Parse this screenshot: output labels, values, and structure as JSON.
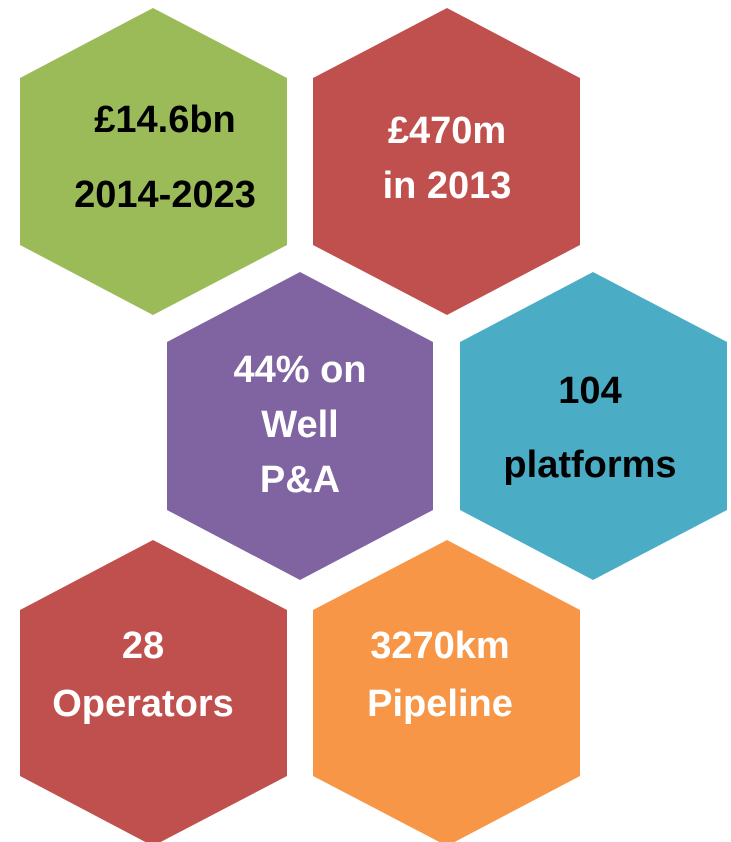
{
  "nodes": [
    {
      "lines": [
        "£14.6bn",
        "2014-2023"
      ]
    },
    {
      "lines": [
        "£470m",
        "in 2013"
      ]
    },
    {
      "lines": [
        "44% on",
        "Well",
        "P&A"
      ]
    },
    {
      "lines": [
        "104",
        "platforms"
      ]
    },
    {
      "lines": [
        "28",
        "Operators"
      ]
    },
    {
      "lines": [
        "3270km",
        "Pipeline"
      ]
    }
  ]
}
